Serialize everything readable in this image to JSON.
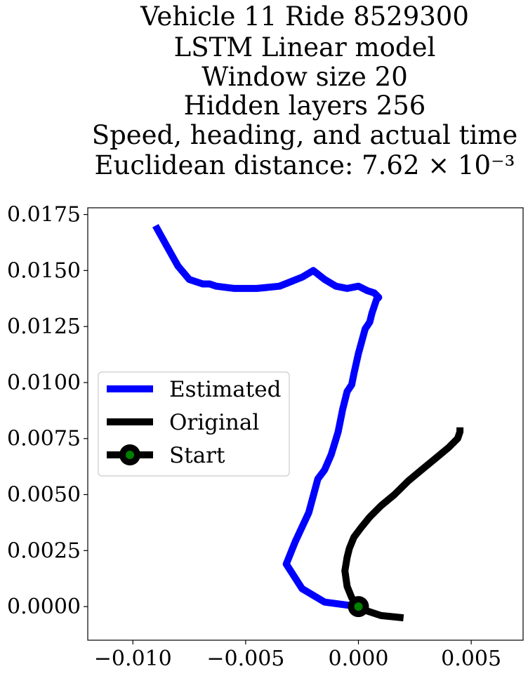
{
  "chart_data": {
    "type": "line",
    "title_lines": [
      "Vehicle 11 Ride 8529300",
      "LSTM Linear model",
      "Window size 20",
      "Hidden layers 256",
      "Speed, heading, and actual time",
      "Euclidean distance: 7.62 × 10⁻³"
    ],
    "xlabel": "",
    "ylabel": "",
    "xlim": [
      -0.012,
      0.0073
    ],
    "ylim": [
      -0.0015,
      0.0178
    ],
    "x_ticks": [
      "−0.010",
      "−0.005",
      "0.000",
      "0.005"
    ],
    "x_tick_values": [
      -0.01,
      -0.005,
      0.0,
      0.005
    ],
    "y_ticks": [
      "0.0000",
      "0.0025",
      "0.0050",
      "0.0075",
      "0.0100",
      "0.0125",
      "0.0150",
      "0.0175"
    ],
    "y_tick_values": [
      0.0,
      0.0025,
      0.005,
      0.0075,
      0.01,
      0.0125,
      0.015,
      0.0175
    ],
    "grid": false,
    "legend_position": "center-left",
    "series": [
      {
        "name": "Estimated",
        "color": "#0000ff",
        "x": [
          0.0,
          -0.0015,
          -0.0025,
          -0.0032,
          -0.0028,
          -0.0022,
          -0.0018,
          -0.0015,
          -0.0012,
          -0.0009,
          -0.0007,
          -0.0005,
          -0.0003,
          -0.0002,
          0.0,
          0.0003,
          0.0005,
          0.0006,
          0.0008,
          0.0009,
          0.0007,
          0.0004,
          0.0,
          -0.0005,
          -0.001,
          -0.0015,
          -0.002,
          -0.0025,
          -0.003,
          -0.0035,
          -0.0045,
          -0.0055,
          -0.0063,
          -0.0066,
          -0.0069,
          -0.0075,
          -0.008,
          -0.0085,
          -0.009
        ],
        "y": [
          0.0,
          0.0002,
          0.0008,
          0.0019,
          0.0029,
          0.0042,
          0.0057,
          0.0061,
          0.0068,
          0.0078,
          0.0088,
          0.0096,
          0.0099,
          0.0104,
          0.0113,
          0.0124,
          0.0127,
          0.0131,
          0.0137,
          0.0138,
          0.014,
          0.0141,
          0.0143,
          0.0142,
          0.0143,
          0.0146,
          0.015,
          0.0147,
          0.0145,
          0.0143,
          0.0142,
          0.0142,
          0.0143,
          0.0144,
          0.0144,
          0.0146,
          0.0152,
          0.0161,
          0.017
        ]
      },
      {
        "name": "Original",
        "color": "#000000",
        "x": [
          0.002,
          0.001,
          0.0004,
          0.0,
          -0.0003,
          -0.0005,
          -0.0006,
          -0.0005,
          -0.0004,
          -0.0002,
          0.0001,
          0.0005,
          0.001,
          0.0016,
          0.0022,
          0.0028,
          0.0034,
          0.004,
          0.0044,
          0.0045,
          0.0045
        ],
        "y": [
          -0.0005,
          -0.0004,
          -0.0002,
          0.0,
          0.0004,
          0.0009,
          0.0016,
          0.0022,
          0.0026,
          0.0031,
          0.0035,
          0.004,
          0.0045,
          0.005,
          0.0056,
          0.0061,
          0.0066,
          0.0071,
          0.0075,
          0.0078,
          0.008
        ]
      }
    ],
    "start_point": {
      "name": "Start",
      "x": 0.0,
      "y": 0.0,
      "marker_color": "#008000",
      "edge_color": "#000000"
    }
  }
}
